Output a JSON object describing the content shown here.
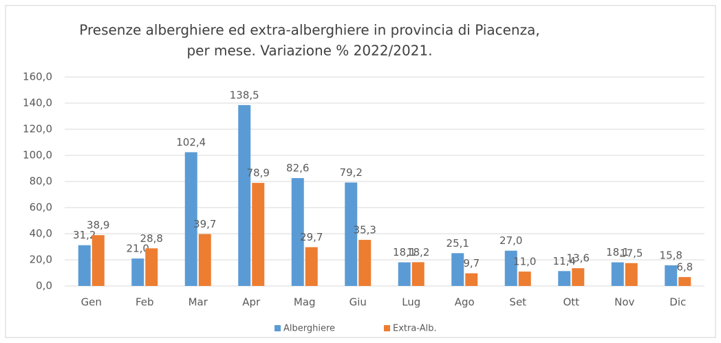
{
  "chart_data": {
    "type": "bar",
    "title": [
      "Presenze alberghiere ed extra-alberghiere in provincia di Piacenza,",
      "per mese. Variazione % 2022/2021."
    ],
    "categories": [
      "Gen",
      "Feb",
      "Mar",
      "Apr",
      "Mag",
      "Giu",
      "Lug",
      "Ago",
      "Set",
      "Ott",
      "Nov",
      "Dic"
    ],
    "series": [
      {
        "name": "Alberghiere",
        "color": "#5b9bd5",
        "values": [
          31.2,
          21.0,
          102.4,
          138.5,
          82.6,
          79.2,
          18.1,
          25.1,
          27.0,
          11.4,
          18.1,
          15.8
        ],
        "value_labels": [
          "31,2",
          "21,0",
          "102,4",
          "138,5",
          "82,6",
          "79,2",
          "18,1",
          "25,1",
          "27,0",
          "11,4",
          "18,1",
          "15,8"
        ]
      },
      {
        "name": "Extra-Alb.",
        "color": "#ed7d31",
        "values": [
          38.9,
          28.8,
          39.7,
          78.9,
          29.7,
          35.3,
          18.2,
          9.7,
          11.0,
          13.6,
          17.5,
          6.8
        ],
        "value_labels": [
          "38,9",
          "28,8",
          "39,7",
          "78,9",
          "29,7",
          "35,3",
          "18,2",
          "9,7",
          "11,0",
          "13,6",
          "17,5",
          "6,8"
        ]
      }
    ],
    "ylim": [
      0,
      160
    ],
    "yticks": [
      {
        "value": 0,
        "label": "0,0"
      },
      {
        "value": 20,
        "label": "20,0"
      },
      {
        "value": 40,
        "label": "40,0"
      },
      {
        "value": 60,
        "label": "60,0"
      },
      {
        "value": 80,
        "label": "80,0"
      },
      {
        "value": 100,
        "label": "100,0"
      },
      {
        "value": 120,
        "label": "120,0"
      },
      {
        "value": 140,
        "label": "140,0"
      },
      {
        "value": 160,
        "label": "160,0"
      }
    ],
    "grid": true,
    "legend": "bottom"
  }
}
